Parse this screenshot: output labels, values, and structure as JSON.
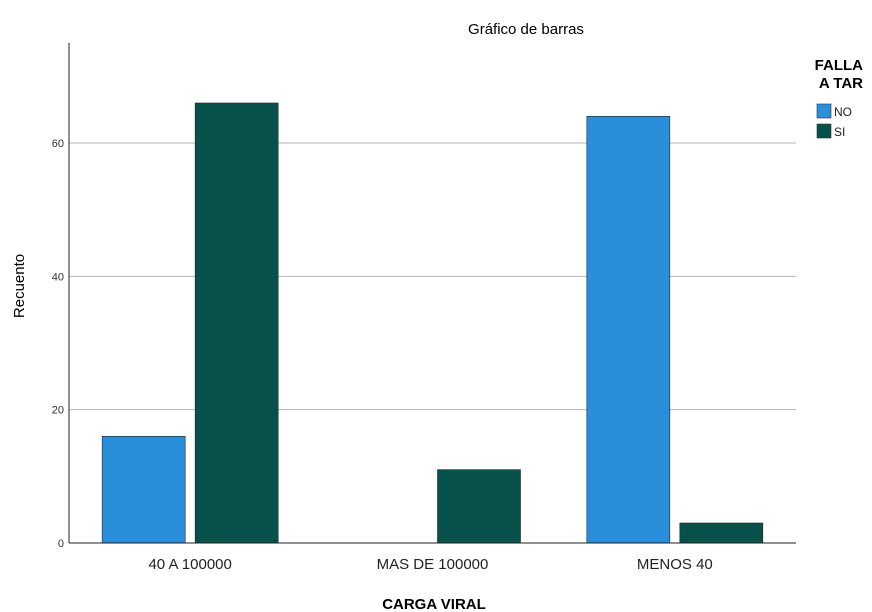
{
  "chart_data": {
    "type": "bar",
    "title": "Gráfico de barras",
    "xlabel": "CARGA VIRAL",
    "ylabel": "Recuento",
    "categories": [
      "40 A 100000",
      "MAS DE 100000",
      "MENOS 40"
    ],
    "series": [
      {
        "name": "NO",
        "values": [
          16,
          0,
          64
        ]
      },
      {
        "name": "SI",
        "values": [
          66,
          11,
          3
        ]
      }
    ],
    "ylim": [
      0,
      75
    ],
    "yticks": [
      0,
      20,
      40,
      60
    ],
    "grid": true,
    "legend": {
      "title_lines": [
        "FALLA",
        "A TAR"
      ],
      "position": "top-right"
    },
    "colors": {
      "NO": "#2a8fdb",
      "SI": "#06524a",
      "grid": "#b4b4b4",
      "axis": "#222222"
    }
  }
}
